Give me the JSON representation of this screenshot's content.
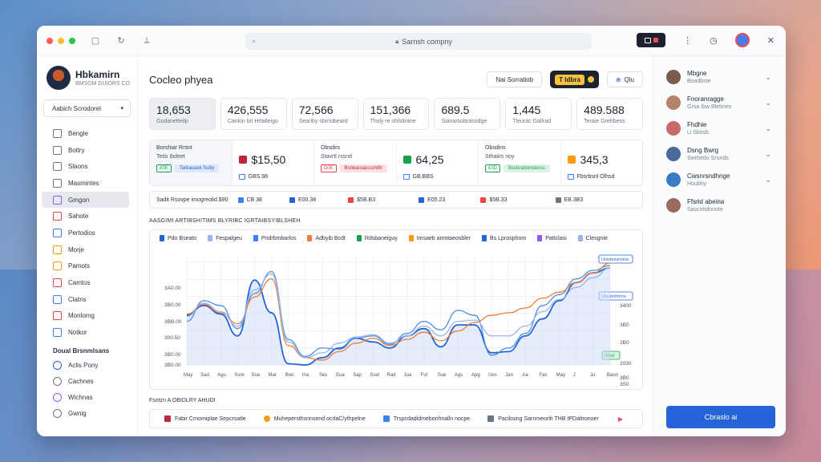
{
  "browser": {
    "url_text": "Sarnsh compny",
    "dark_button_label": "▣",
    "colors": {
      "red": "#ff5f57",
      "yellow": "#febc2e",
      "green": "#28c840"
    }
  },
  "sidebar": {
    "brand_name": "Hbkamirn",
    "brand_sub": "BMSOM DUIORS CO",
    "select_value": "Aabich Scrodorel",
    "items": [
      {
        "label": "Bengle",
        "icon": "phone-icon",
        "color": "#6c7482"
      },
      {
        "label": "Botlry",
        "icon": "document-icon",
        "color": "#6c7482"
      },
      {
        "label": "Slaons",
        "icon": "globe-icon",
        "color": "#6c7482"
      },
      {
        "label": "Masmintes",
        "icon": "chart-icon",
        "color": "#6c7482"
      },
      {
        "label": "Gmgon",
        "icon": "user-circle-icon",
        "color": "#8b5cf6"
      },
      {
        "label": "Sahote",
        "icon": "calendar-icon",
        "color": "#ef4444"
      },
      {
        "label": "Pertodios",
        "icon": "puzzle-icon",
        "color": "#3b82f6"
      },
      {
        "label": "Morje",
        "icon": "person-icon",
        "color": "#f59e0b"
      },
      {
        "label": "Pamots",
        "icon": "smile-icon",
        "color": "#f59e0b"
      },
      {
        "label": "Camtos",
        "icon": "flag-icon",
        "color": "#ef4444"
      },
      {
        "label": "Clatns",
        "icon": "card-icon",
        "color": "#3b82f6"
      },
      {
        "label": "Monlomg",
        "icon": "dashboard-icon",
        "color": "#ef4444"
      },
      {
        "label": "Notkor",
        "icon": "grid-icon",
        "color": "#3b82f6"
      }
    ],
    "section_label": "Doual Brsnmlsans",
    "section_items": [
      {
        "label": "Aclis Pony",
        "icon": "cloud-icon",
        "color": "#2563d8"
      },
      {
        "label": "Cachnes",
        "icon": "camera-icon",
        "color": "#6c7482"
      },
      {
        "label": "Wichnas",
        "icon": "circle-icon",
        "color": "#8b5cf6"
      },
      {
        "label": "Gwnig",
        "icon": "hand-icon",
        "color": "#6c7482"
      }
    ]
  },
  "main": {
    "title": "Cocleo phyea",
    "buttons": {
      "outline": "Nai Sorratiob",
      "yellow": "T ldbra",
      "right": "Qlu"
    },
    "kpis": [
      {
        "value": "18,653",
        "label": "Godanetteilp"
      },
      {
        "value": "426,555",
        "label": "Cankin bri Hrtalleigo"
      },
      {
        "value": "72,566",
        "label": "Seariby sbrnobeard"
      },
      {
        "value": "151,366",
        "label": "Thsly re ohlsltrane"
      },
      {
        "value": "689.5",
        "label": "Sianarsobrasodge"
      },
      {
        "value": "1,445",
        "label": "Tleurac Gallrad"
      },
      {
        "value": "489.588",
        "label": "Teraie Grelrbess"
      }
    ],
    "stats": [
      {
        "title": "Borshiar Rrsnt",
        "sub": "Tetis Ibdeet",
        "tag_box": "£0E",
        "tag_fill": "Tarbaoaiol Sulliy",
        "box_color": "#16a34a",
        "fill_color": "#dfe8fb",
        "fill_text": "#2563d8"
      },
      {
        "value": "$15,50",
        "tag": "GBS.98",
        "icon_color": "#c0263b",
        "tag_color": "#3b82f6"
      },
      {
        "title": "Obsdirs",
        "sub": "Stavrtl rssnd",
        "tag_box": "D0E",
        "tag_fill": "Bsnbarsiacssmtlh",
        "box_color": "#ef4444",
        "fill_color": "#fde0e0",
        "fill_text": "#c0263b"
      },
      {
        "value": "64,25",
        "tag": "GB.BBS",
        "icon_color": "#16a34a",
        "tag_color": "#3b82f6"
      },
      {
        "title": "Obsdins",
        "sub": "Sthaiirs noy",
        "tag_box": "£0D",
        "tag_fill": "Bscbratiomsbnss",
        "box_color": "#16a34a",
        "fill_color": "#dcf3e3",
        "fill_text": "#16a34a"
      },
      {
        "value": "345,3",
        "tag": "Fbsrbsnl Olhsd",
        "icon_color": "#f59e0b",
        "tag_color": "#3b82f6"
      }
    ],
    "strip": [
      {
        "label": "Sadit Rsovpe imogreolid $90",
        "color": ""
      },
      {
        "label": "CB 38",
        "color": "#3b82f6"
      },
      {
        "label": "E00.38",
        "color": "#2563d8"
      },
      {
        "label": "$5B.B3",
        "color": "#ef4444"
      },
      {
        "label": "E05.23",
        "color": "#2563d8"
      },
      {
        "label": "$5B.33",
        "color": "#ef4444"
      },
      {
        "label": "EB.3B3",
        "color": "#6c7482"
      }
    ],
    "chart_heading": "AASGIMI ARTIBSHITIMS BLYRIBC IGRTAIBSYIBLSHEH",
    "bottom_heading": "Fsotzn A OBIDLRY AHUDI",
    "bottom_items": [
      {
        "label": "Fabir Crnomiplae Sepcrsatle",
        "color": "#c0263b",
        "icon": "pin-icon"
      },
      {
        "label": "Muhepersthsnnsend ocrlaC/ythpelne",
        "color": "#f59e0b",
        "icon": "pie-icon"
      },
      {
        "label": "Trspcdadidmebonhnalln nocpe",
        "color": "#3b82f6",
        "icon": "image-icon"
      },
      {
        "label": "Pacibsing Sarnmeorih THB tPDaltronoer",
        "color": "#6c7482",
        "icon": "bag-icon"
      }
    ]
  },
  "chart_data": {
    "type": "line",
    "legend": [
      "Pdo Bseato",
      "Fespalgeu",
      "Pndrbmbarlos",
      "Adbyib Bcdt",
      "Rdsbaneiguy",
      "Imsaeb anmtaeosbler",
      "Bs Lprosphom",
      "Pattclasi",
      "Clesgnie"
    ],
    "legend_colors": [
      "#2563d8",
      "#9ab4ec",
      "#3b82f6",
      "#ef7d3c",
      "#16a34a",
      "#f59e0b",
      "#2563d8",
      "#8b5cf6",
      "#9ab4ec"
    ],
    "x": [
      "May",
      "Sad",
      "Agu",
      "Ssre",
      "Soa",
      "Mar",
      "Bwc",
      "Ina",
      "Ses",
      "Eua",
      "Sap",
      "Ssel",
      "Rad",
      "Jua",
      "Ful",
      "Sue",
      "Ags",
      "Apg",
      "Ues",
      "Jan",
      "Aa",
      "Fax",
      "May",
      "J",
      "Ju",
      "Baun"
    ],
    "y_ticks_left": [
      "3A0.00",
      "3B0.00",
      "3BB.00",
      "300.50",
      "3B0.00",
      "3B0.00",
      "340.00"
    ],
    "y_ticks_right": [
      "3400",
      "3B0",
      "2B0",
      "2030",
      "3B0",
      "3S0"
    ],
    "right_labels": [
      "Unisboisnvine",
      "Ufssbnfmmo",
      "IBEd"
    ],
    "series": [
      {
        "name": "Pdo Bseato",
        "color": "#2563d8",
        "area": true,
        "values": [
          20.5,
          24.5,
          21,
          12,
          35,
          21.5,
          0.5,
          0,
          3,
          7,
          11,
          9.5,
          7,
          12,
          15,
          7.5,
          16.5,
          16.5,
          5,
          5.5,
          12,
          19,
          26.5,
          34,
          38,
          40
        ]
      },
      {
        "name": "Rdsbaneiguy",
        "color": "#4a90e2",
        "area": false,
        "values": [
          18,
          26.5,
          24.5,
          15,
          29.5,
          38.5,
          10.5,
          3.5,
          7,
          6.5,
          11,
          12,
          8.5,
          13,
          18,
          14.5,
          22.5,
          20.5,
          4,
          7,
          13,
          24.5,
          29,
          35.5,
          39,
          41
        ]
      },
      {
        "name": "Adbyib Bcdt",
        "color": "#ef7d3c",
        "area": false,
        "values": [
          21,
          25,
          21.5,
          17,
          28,
          35.5,
          8,
          3,
          2,
          5.5,
          9,
          11,
          8,
          10.5,
          13.5,
          10,
          14,
          17.5,
          20.5,
          21.5,
          23.5,
          27.5,
          30,
          34,
          38,
          42
        ]
      },
      {
        "name": "Fespalgeu",
        "color": "#9ab4ec",
        "area": false,
        "values": [
          20,
          25.5,
          22,
          16,
          31,
          37.5,
          9.5,
          3,
          5,
          9,
          11.5,
          12.5,
          9,
          12,
          16,
          12,
          18,
          18.5,
          12,
          12,
          16,
          22,
          27,
          32,
          36,
          40
        ]
      }
    ],
    "ylim": [
      0,
      45
    ]
  },
  "rpanel": {
    "contacts": [
      {
        "name": "Mbgne",
        "sub": "Boadbste",
        "color": "#7a5a4a"
      },
      {
        "name": "Fnoranragge",
        "sub": "Grsa Ibw Blebnes",
        "color": "#b5836b"
      },
      {
        "name": "Fhdhie",
        "sub": "Li Sbitsb",
        "color": "#c96a6a"
      },
      {
        "name": "Dsng Bwrg",
        "sub": "Swrbedo Srunds",
        "color": "#4a6a9a"
      },
      {
        "name": "Cwsnrsndhnge",
        "sub": "Houbhy",
        "color": "#3a7bc8"
      },
      {
        "name": "Ffsrid abeina",
        "sub": "Sascnhdnnote",
        "color": "#9a6a5a"
      }
    ],
    "button_label": "Cbraslo ai"
  }
}
